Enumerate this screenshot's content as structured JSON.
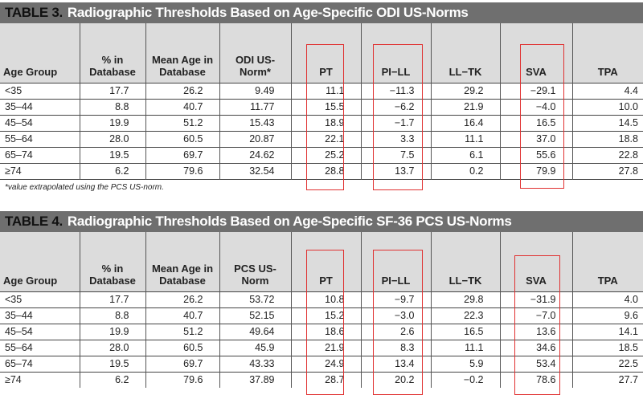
{
  "table3": {
    "number": "TABLE 3.",
    "title": "Radiographic Thresholds Based on Age-Specific ODI US-Norms",
    "headers": [
      "Age Group",
      "% in Database",
      "Mean Age in Database",
      "ODI US-Norm*",
      "PT",
      "PI−LL",
      "LL−TK",
      "SVA",
      "TPA"
    ],
    "rows": [
      [
        "<35",
        "17.7",
        "26.2",
        "9.49",
        "11.1",
        "−11.3",
        "29.2",
        "−29.1",
        "4.4"
      ],
      [
        "35–44",
        "8.8",
        "40.7",
        "11.77",
        "15.5",
        "−6.2",
        "21.9",
        "−4.0",
        "10.0"
      ],
      [
        "45–54",
        "19.9",
        "51.2",
        "15.43",
        "18.9",
        "−1.7",
        "16.4",
        "16.5",
        "14.5"
      ],
      [
        "55–64",
        "28.0",
        "60.5",
        "20.87",
        "22.1",
        "3.3",
        "11.1",
        "37.0",
        "18.8"
      ],
      [
        "65–74",
        "19.5",
        "69.7",
        "24.62",
        "25.2",
        "7.5",
        "6.1",
        "55.6",
        "22.8"
      ],
      [
        "≥74",
        "6.2",
        "79.6",
        "32.54",
        "28.8",
        "13.7",
        "0.2",
        "79.9",
        "27.8"
      ]
    ],
    "footnote": "*value extrapolated using the PCS US-norm."
  },
  "table4": {
    "number": "TABLE 4.",
    "title": "Radiographic Thresholds Based on Age-Specific SF-36 PCS US-Norms",
    "headers": [
      "Age Group",
      "% in Database",
      "Mean Age in Database",
      "PCS US-Norm",
      "PT",
      "PI−LL",
      "LL−TK",
      "SVA",
      "TPA"
    ],
    "rows": [
      [
        "<35",
        "17.7",
        "26.2",
        "53.72",
        "10.8",
        "−9.7",
        "29.8",
        "−31.9",
        "4.0"
      ],
      [
        "35–44",
        "8.8",
        "40.7",
        "52.15",
        "15.2",
        "−3.0",
        "22.3",
        "−7.0",
        "9.6"
      ],
      [
        "45–54",
        "19.9",
        "51.2",
        "49.64",
        "18.6",
        "2.6",
        "16.5",
        "13.6",
        "14.1"
      ],
      [
        "55–64",
        "28.0",
        "60.5",
        "45.9",
        "21.9",
        "8.3",
        "11.1",
        "34.6",
        "18.5"
      ],
      [
        "65–74",
        "19.5",
        "69.7",
        "43.33",
        "24.9",
        "13.4",
        "5.9",
        "53.4",
        "22.5"
      ],
      [
        "≥74",
        "6.2",
        "79.6",
        "37.89",
        "28.7",
        "20.2",
        "−0.2",
        "78.6",
        "27.7"
      ]
    ]
  },
  "highlight_color": "#e03030"
}
